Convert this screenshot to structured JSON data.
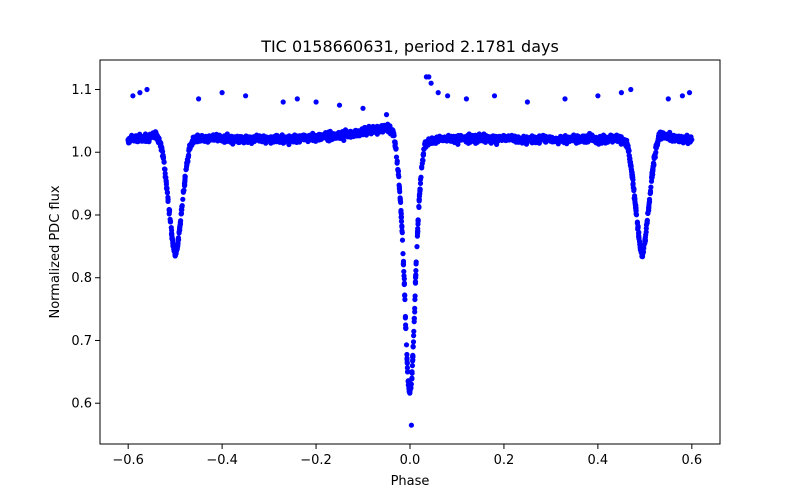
{
  "chart_data": {
    "type": "scatter",
    "title": "TIC 0158660631, period 2.1781 days",
    "xlabel": "Phase",
    "ylabel": "Normalized PDC flux",
    "xlim": [
      -0.66,
      0.66
    ],
    "ylim": [
      0.535,
      1.147
    ],
    "xticks": [
      -0.6,
      -0.4,
      -0.2,
      0.0,
      0.2,
      0.4,
      0.6
    ],
    "xtick_labels": [
      "−0.6",
      "−0.4",
      "−0.2",
      "0.0",
      "0.2",
      "0.4",
      "0.6"
    ],
    "yticks": [
      0.6,
      0.7,
      0.8,
      0.9,
      1.0,
      1.1
    ],
    "ytick_labels": [
      "0.6",
      "0.7",
      "0.8",
      "0.9",
      "1.0",
      "1.1"
    ],
    "grid": false,
    "legend": "none",
    "marker_color": "#0000ff",
    "series": [
      {
        "x": [
          -0.6,
          -0.59,
          -0.58,
          -0.57,
          -0.56,
          -0.55,
          -0.54,
          -0.53,
          -0.525,
          -0.52,
          -0.515,
          -0.51,
          -0.505,
          -0.5,
          -0.495,
          -0.49,
          -0.485,
          -0.48,
          -0.475,
          -0.47,
          -0.465,
          -0.46,
          -0.45,
          -0.44,
          -0.42,
          -0.4,
          -0.38,
          -0.35,
          -0.32,
          -0.3,
          -0.28,
          -0.25,
          -0.22,
          -0.2,
          -0.18,
          -0.15,
          -0.12,
          -0.1,
          -0.08,
          -0.06,
          -0.045,
          -0.035,
          -0.03,
          -0.025,
          -0.02,
          -0.016,
          -0.012,
          -0.009,
          -0.006,
          -0.004,
          -0.002,
          0.0,
          0.002,
          0.004,
          0.006,
          0.009,
          0.012,
          0.016,
          0.02,
          0.025,
          0.03,
          0.035,
          0.045,
          0.06,
          0.08,
          0.1,
          0.12,
          0.15,
          0.18,
          0.2,
          0.22,
          0.25,
          0.28,
          0.3,
          0.32,
          0.35,
          0.38,
          0.4,
          0.42,
          0.44,
          0.45,
          0.46,
          0.465,
          0.47,
          0.475,
          0.48,
          0.485,
          0.49,
          0.495,
          0.5,
          0.505,
          0.51,
          0.515,
          0.52,
          0.525,
          0.53,
          0.54,
          0.55,
          0.56,
          0.57,
          0.58,
          0.59,
          0.6
        ],
        "y": [
          1.02,
          1.022,
          1.021,
          1.023,
          1.024,
          1.026,
          1.028,
          1.01,
          0.99,
          0.96,
          0.925,
          0.89,
          0.855,
          0.835,
          0.85,
          0.88,
          0.915,
          0.95,
          0.98,
          1.005,
          1.015,
          1.02,
          1.022,
          1.021,
          1.023,
          1.022,
          1.021,
          1.02,
          1.022,
          1.021,
          1.02,
          1.022,
          1.024,
          1.023,
          1.025,
          1.027,
          1.03,
          1.032,
          1.035,
          1.038,
          1.04,
          1.03,
          1.005,
          0.97,
          0.92,
          0.86,
          0.79,
          0.72,
          0.665,
          0.635,
          0.622,
          0.62,
          0.625,
          0.64,
          0.675,
          0.73,
          0.8,
          0.87,
          0.93,
          0.975,
          1.005,
          1.015,
          1.02,
          1.021,
          1.022,
          1.02,
          1.021,
          1.022,
          1.02,
          1.023,
          1.021,
          1.02,
          1.022,
          1.021,
          1.02,
          1.021,
          1.022,
          1.02,
          1.021,
          1.022,
          1.02,
          1.015,
          1.005,
          0.98,
          0.95,
          0.915,
          0.88,
          0.85,
          0.835,
          0.855,
          0.89,
          0.925,
          0.96,
          0.99,
          1.01,
          1.025,
          1.026,
          1.024,
          1.023,
          1.022,
          1.021,
          1.022,
          1.02
        ]
      }
    ],
    "outliers": {
      "x": [
        -0.59,
        -0.575,
        -0.56,
        -0.45,
        -0.4,
        -0.35,
        -0.27,
        -0.24,
        -0.2,
        -0.15,
        -0.1,
        -0.05,
        0.003,
        0.035,
        0.04,
        0.045,
        0.06,
        0.08,
        0.12,
        0.18,
        0.25,
        0.33,
        0.4,
        0.45,
        0.47,
        0.55,
        0.58,
        0.595
      ],
      "y": [
        1.09,
        1.095,
        1.1,
        1.085,
        1.095,
        1.09,
        1.08,
        1.085,
        1.08,
        1.075,
        1.07,
        1.06,
        0.565,
        1.12,
        1.12,
        1.11,
        1.095,
        1.09,
        1.085,
        1.09,
        1.08,
        1.085,
        1.09,
        1.095,
        1.1,
        1.085,
        1.09,
        1.095
      ]
    }
  }
}
